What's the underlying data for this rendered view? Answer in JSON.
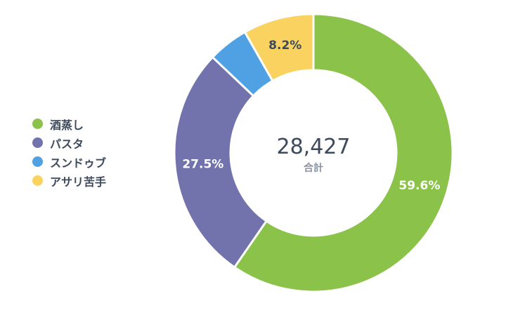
{
  "chart_data": {
    "type": "pie",
    "donut": true,
    "total": "28,427",
    "total_label": "合計",
    "legend_position": "left",
    "series": [
      {
        "name": "酒蒸し",
        "percent": 59.6,
        "label": "59.6%",
        "color": "#8bc34a",
        "label_color": "#ffffff"
      },
      {
        "name": "パスタ",
        "percent": 27.5,
        "label": "27.5%",
        "color": "#7272ad",
        "label_color": "#ffffff"
      },
      {
        "name": "スンドゥブ",
        "percent": 4.7,
        "label": "",
        "color": "#4fa1e4",
        "label_color": "#ffffff"
      },
      {
        "name": "アサリ苦手",
        "percent": 8.2,
        "label": "8.2%",
        "color": "#f9d25f",
        "label_color": "#3d4a5c"
      }
    ]
  }
}
